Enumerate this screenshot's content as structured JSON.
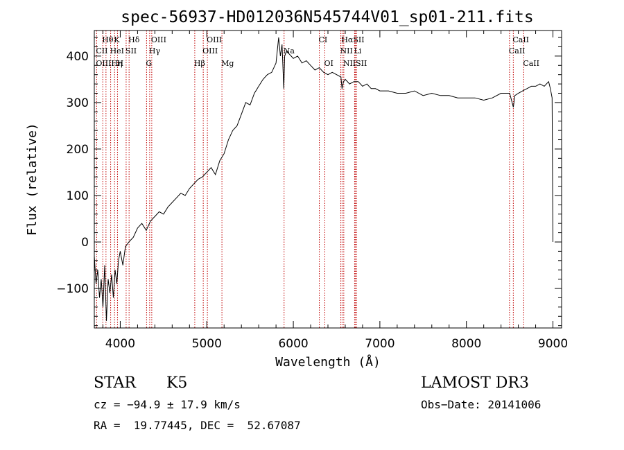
{
  "chart_data": {
    "type": "line",
    "title": "spec-56937-HD012036N545744V01_sp01-211.fits",
    "xlabel": "Wavelength (Å)",
    "ylabel": "Flux (relative)",
    "xlim": [
      3700,
      9100
    ],
    "ylim": [
      -185,
      455
    ],
    "xticks": [
      4000,
      5000,
      6000,
      7000,
      8000,
      9000
    ],
    "yticks": [
      -100,
      0,
      100,
      200,
      300,
      400
    ],
    "grid": false,
    "series": [
      {
        "color": "#000000",
        "x": [
          3700,
          3720,
          3740,
          3760,
          3780,
          3800,
          3820,
          3840,
          3860,
          3880,
          3900,
          3920,
          3940,
          3960,
          3980,
          4000,
          4030,
          4060,
          4100,
          4150,
          4200,
          4250,
          4300,
          4350,
          4400,
          4450,
          4500,
          4550,
          4600,
          4650,
          4700,
          4750,
          4800,
          4850,
          4900,
          4950,
          5000,
          5050,
          5100,
          5150,
          5200,
          5250,
          5300,
          5350,
          5400,
          5450,
          5500,
          5550,
          5600,
          5650,
          5700,
          5750,
          5800,
          5830,
          5850,
          5870,
          5890,
          5900,
          5920,
          5950,
          6000,
          6050,
          6100,
          6150,
          6200,
          6250,
          6300,
          6350,
          6400,
          6450,
          6500,
          6550,
          6563,
          6580,
          6600,
          6650,
          6700,
          6750,
          6800,
          6850,
          6900,
          6950,
          7000,
          7100,
          7200,
          7300,
          7400,
          7500,
          7600,
          7700,
          7800,
          7900,
          8000,
          8100,
          8200,
          8300,
          8400,
          8500,
          8542,
          8560,
          8600,
          8650,
          8700,
          8750,
          8800,
          8850,
          8900,
          8950,
          8970,
          8990,
          9000
        ],
        "values": [
          -30,
          -90,
          -60,
          -120,
          -80,
          -140,
          -50,
          -170,
          -80,
          -110,
          -70,
          -120,
          -60,
          -90,
          -40,
          -20,
          -50,
          -10,
          0,
          10,
          30,
          40,
          25,
          45,
          55,
          65,
          60,
          75,
          85,
          95,
          105,
          100,
          115,
          125,
          135,
          140,
          150,
          160,
          145,
          175,
          190,
          220,
          240,
          250,
          275,
          300,
          295,
          320,
          335,
          350,
          360,
          365,
          385,
          440,
          400,
          425,
          330,
          400,
          410,
          405,
          395,
          400,
          385,
          390,
          380,
          370,
          375,
          365,
          360,
          365,
          360,
          355,
          330,
          345,
          350,
          340,
          345,
          345,
          335,
          340,
          330,
          330,
          325,
          325,
          320,
          320,
          325,
          315,
          320,
          315,
          315,
          310,
          310,
          310,
          305,
          310,
          320,
          320,
          290,
          315,
          320,
          325,
          330,
          335,
          335,
          340,
          335,
          345,
          330,
          310,
          0
        ]
      }
    ],
    "annotations": [
      {
        "label": "Hθ",
        "x": 3798,
        "row": 1
      },
      {
        "label": "K",
        "x": 3934,
        "row": 1
      },
      {
        "label": "Hδ",
        "x": 4102,
        "row": 1
      },
      {
        "label": "OIII",
        "x": 4364,
        "row": 1
      },
      {
        "label": "OIII",
        "x": 5007,
        "row": 1
      },
      {
        "label": "CI",
        "x": 6300,
        "row": 1
      },
      {
        "label": "HαSII",
        "x": 6563,
        "row": 1
      },
      {
        "label": "CaII",
        "x": 8542,
        "row": 1
      },
      {
        "label": "CII",
        "x": 3727,
        "row": 2
      },
      {
        "label": "HeI",
        "x": 3889,
        "row": 2
      },
      {
        "label": "SII",
        "x": 4068,
        "row": 2
      },
      {
        "label": "Hγ",
        "x": 4340,
        "row": 2
      },
      {
        "label": "OIII",
        "x": 4959,
        "row": 2
      },
      {
        "label": "Na",
        "x": 5893,
        "row": 2
      },
      {
        "label": "NII",
        "x": 6548,
        "row": 2
      },
      {
        "label": "Li",
        "x": 6708,
        "row": 2
      },
      {
        "label": "CaII",
        "x": 8498,
        "row": 2
      },
      {
        "label": "OIIIHη",
        "x": 3727,
        "row": 3
      },
      {
        "label": "H",
        "x": 3968,
        "row": 3
      },
      {
        "label": "G",
        "x": 4304,
        "row": 3
      },
      {
        "label": "Hβ",
        "x": 4861,
        "row": 3
      },
      {
        "label": "Mg",
        "x": 5175,
        "row": 3
      },
      {
        "label": "OI",
        "x": 6364,
        "row": 3
      },
      {
        "label": "NIISII",
        "x": 6583,
        "row": 3
      },
      {
        "label": "CaII",
        "x": 8662,
        "row": 3
      }
    ],
    "line_markers": [
      3727,
      3798,
      3835,
      3889,
      3934,
      3968,
      4068,
      4102,
      4304,
      4340,
      4364,
      4861,
      4959,
      5007,
      5175,
      5893,
      6300,
      6364,
      6548,
      6563,
      6583,
      6708,
      6716,
      6731,
      8498,
      8542,
      8662
    ]
  },
  "info": {
    "object_class": "STAR",
    "subclass": "K5",
    "survey": "LAMOST DR3",
    "redshift": "cz = −94.9 ± 17.9 km/s",
    "obs_date": "Obs−Date: 20141006",
    "coords": "RA =  19.77445, DEC =  52.67087"
  }
}
